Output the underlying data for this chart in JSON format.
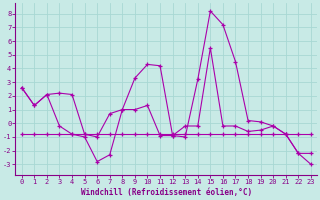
{
  "xlabel": "Windchill (Refroidissement éolien,°C)",
  "background_color": "#c8eae6",
  "grid_color": "#a8d8d4",
  "line_color": "#aa00aa",
  "x_ticks": [
    0,
    1,
    2,
    3,
    4,
    5,
    6,
    7,
    8,
    9,
    10,
    11,
    12,
    13,
    14,
    15,
    16,
    17,
    18,
    19,
    20,
    21,
    22,
    23
  ],
  "y_ticks": [
    -3,
    -2,
    -1,
    0,
    1,
    2,
    3,
    4,
    5,
    6,
    7,
    8
  ],
  "ylim": [
    -3.8,
    8.8
  ],
  "xlim": [
    -0.5,
    23.5
  ],
  "series": [
    [
      2.6,
      1.3,
      2.1,
      -0.2,
      -0.8,
      -1.0,
      -2.8,
      -2.3,
      1.0,
      3.3,
      4.3,
      4.2,
      -0.9,
      -1.0,
      3.2,
      8.2,
      7.2,
      4.5,
      0.2,
      0.1,
      -0.2,
      -0.8,
      -2.2,
      -2.2
    ],
    [
      2.6,
      1.3,
      2.1,
      2.2,
      2.1,
      -0.8,
      -1.0,
      0.7,
      1.0,
      1.0,
      1.3,
      -0.9,
      -0.9,
      -0.2,
      -0.2,
      5.5,
      -0.2,
      -0.2,
      -0.6,
      -0.5,
      -0.2,
      -0.8,
      -2.2,
      -3.0
    ],
    [
      -0.8,
      -0.8,
      -0.8,
      -0.8,
      -0.8,
      -0.8,
      -0.8,
      -0.8,
      -0.8,
      -0.8,
      -0.8,
      -0.8,
      -0.8,
      -0.8,
      -0.8,
      -0.8,
      -0.8,
      -0.8,
      -0.8,
      -0.8,
      -0.8,
      -0.8,
      -0.8,
      -0.8
    ]
  ]
}
